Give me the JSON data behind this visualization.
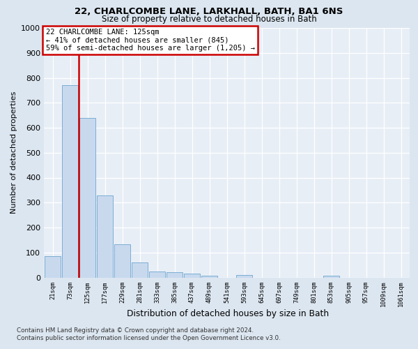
{
  "title_line1": "22, CHARLCOMBE LANE, LARKHALL, BATH, BA1 6NS",
  "title_line2": "Size of property relative to detached houses in Bath",
  "xlabel": "Distribution of detached houses by size in Bath",
  "ylabel": "Number of detached properties",
  "bins": [
    "21sqm",
    "73sqm",
    "125sqm",
    "177sqm",
    "229sqm",
    "281sqm",
    "333sqm",
    "385sqm",
    "437sqm",
    "489sqm",
    "541sqm",
    "593sqm",
    "645sqm",
    "697sqm",
    "749sqm",
    "801sqm",
    "853sqm",
    "905sqm",
    "957sqm",
    "1009sqm",
    "1061sqm"
  ],
  "bar_values": [
    85,
    770,
    640,
    330,
    133,
    60,
    25,
    22,
    15,
    8,
    0,
    10,
    0,
    0,
    0,
    0,
    8,
    0,
    0,
    0,
    0
  ],
  "bar_color": "#c8d9ee",
  "bar_edge_color": "#7aaed4",
  "highlight_index": 1,
  "highlight_color": "#cc0000",
  "annotation_text": "22 CHARLCOMBE LANE: 125sqm\n← 41% of detached houses are smaller (845)\n59% of semi-detached houses are larger (1,205) →",
  "annotation_box_facecolor": "#ffffff",
  "annotation_box_edgecolor": "#cc0000",
  "ylim": [
    0,
    1000
  ],
  "yticks": [
    0,
    100,
    200,
    300,
    400,
    500,
    600,
    700,
    800,
    900,
    1000
  ],
  "footnote1": "Contains HM Land Registry data © Crown copyright and database right 2024.",
  "footnote2": "Contains public sector information licensed under the Open Government Licence v3.0.",
  "fig_facecolor": "#dce6f0",
  "ax_facecolor": "#e8eef6",
  "grid_color": "#ffffff"
}
